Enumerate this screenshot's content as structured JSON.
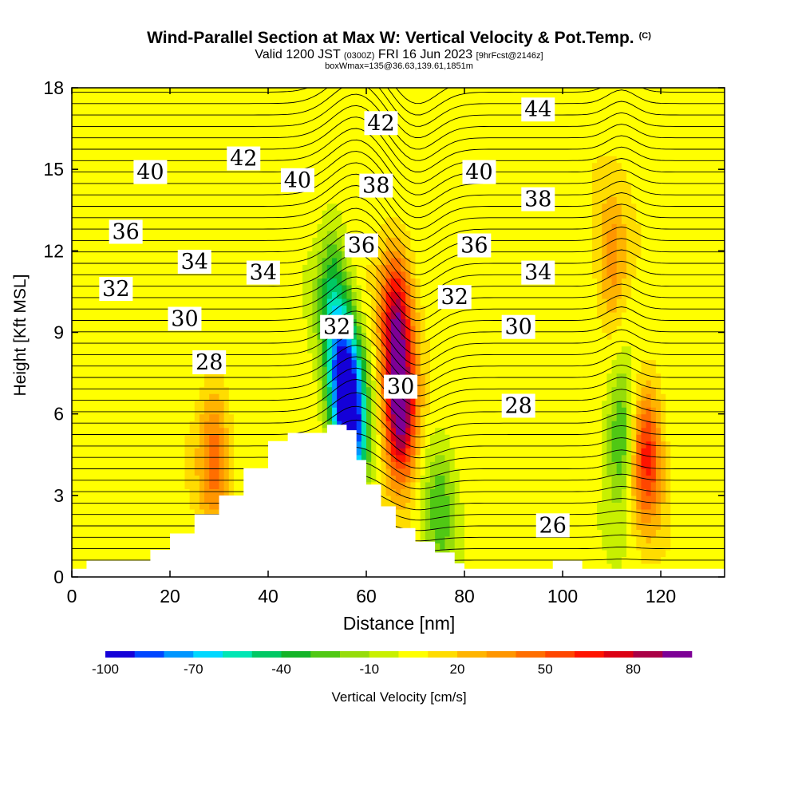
{
  "title": {
    "main": "Wind-Parallel Section at Max W: Vertical Velocity & Pot.Temp.",
    "copyright": "(C)",
    "valid_prefix": "Valid 1200 JST",
    "valid_utc": "(0300Z)",
    "valid_date": "FRI 16 Jun 2023",
    "forecast_tag": "[9hrFcst@2146z]",
    "box_info": "boxWmax=135@36.63,139.61,1851m"
  },
  "chart_data": {
    "type": "heatmap",
    "xlabel": "Distance [nm]",
    "ylabel": "Height [Kft MSL]",
    "xlim": [
      0,
      133
    ],
    "ylim": [
      0,
      18
    ],
    "xticks": [
      0,
      20,
      40,
      60,
      80,
      100,
      120
    ],
    "yticks": [
      0,
      3,
      6,
      9,
      12,
      15,
      18
    ],
    "colorbar": {
      "label": "Vertical Velocity [cm/s]",
      "levels": [
        -100,
        -90,
        -80,
        -70,
        -60,
        -50,
        -40,
        -30,
        -20,
        -10,
        0,
        10,
        20,
        30,
        40,
        50,
        60,
        70,
        80,
        90,
        100
      ],
      "tick_labels": [
        "-100",
        "-70",
        "-40",
        "-10",
        "20",
        "50",
        "80"
      ],
      "tick_values": [
        -100,
        -70,
        -40,
        -10,
        20,
        50,
        80
      ],
      "colors": [
        "#1400d8",
        "#0046ff",
        "#0096ff",
        "#00d8ff",
        "#00e6b4",
        "#00c864",
        "#14b428",
        "#50c814",
        "#96dc0a",
        "#c8f000",
        "#ffff00",
        "#ffdc00",
        "#ffb400",
        "#ff9600",
        "#ff6e00",
        "#ff4600",
        "#ff1400",
        "#dc0014",
        "#aa0046",
        "#7d0096"
      ]
    },
    "terrain_profile": {
      "x": [
        0,
        3,
        10,
        16,
        20,
        25,
        30,
        35,
        40,
        44,
        52,
        56,
        58,
        60,
        63,
        66,
        70,
        74,
        78,
        80,
        83,
        95,
        98,
        104,
        108,
        133
      ],
      "height": [
        0.3,
        0.6,
        0.6,
        1.0,
        1.6,
        2.3,
        3.0,
        4.0,
        5.0,
        5.3,
        5.6,
        5.4,
        4.3,
        3.4,
        2.6,
        1.8,
        1.3,
        0.9,
        0.5,
        0.3,
        0.3,
        0.3,
        0.6,
        0.3,
        0.3,
        0.3
      ]
    },
    "w_features": [
      {
        "x": 57,
        "z": 5.5,
        "w": -100,
        "desc": "downdraft"
      },
      {
        "x": 55,
        "z": 7.5,
        "w": -70
      },
      {
        "x": 53,
        "z": 10.5,
        "w": -40
      },
      {
        "x": 67,
        "z": 6.0,
        "w": 95,
        "desc": "updraft core"
      },
      {
        "x": 66,
        "z": 9.5,
        "w": 70
      },
      {
        "x": 117,
        "z": 4.5,
        "w": 60
      },
      {
        "x": 112,
        "z": 5.0,
        "w": -40
      },
      {
        "x": 29,
        "z": 4.5,
        "w": 40
      },
      {
        "x": 75,
        "z": 2.5,
        "w": -30
      },
      {
        "x": 110,
        "z": 11.5,
        "w": 30
      }
    ],
    "theta_contour_labels": [
      {
        "value": 44,
        "x": 95,
        "z": 17.2
      },
      {
        "value": 42,
        "x": 63,
        "z": 16.7
      },
      {
        "value": 42,
        "x": 35,
        "z": 15.4
      },
      {
        "value": 40,
        "x": 16,
        "z": 14.9
      },
      {
        "value": 40,
        "x": 46,
        "z": 14.6
      },
      {
        "value": 40,
        "x": 83,
        "z": 14.9
      },
      {
        "value": 38,
        "x": 62,
        "z": 14.4
      },
      {
        "value": 38,
        "x": 95,
        "z": 13.9
      },
      {
        "value": 36,
        "x": 11,
        "z": 12.7
      },
      {
        "value": 36,
        "x": 59,
        "z": 12.2
      },
      {
        "value": 36,
        "x": 82,
        "z": 12.2
      },
      {
        "value": 34,
        "x": 25,
        "z": 11.6
      },
      {
        "value": 34,
        "x": 39,
        "z": 11.2
      },
      {
        "value": 34,
        "x": 95,
        "z": 11.2
      },
      {
        "value": 32,
        "x": 9,
        "z": 10.6
      },
      {
        "value": 32,
        "x": 54,
        "z": 9.2
      },
      {
        "value": 32,
        "x": 78,
        "z": 10.3
      },
      {
        "value": 30,
        "x": 23,
        "z": 9.5
      },
      {
        "value": 30,
        "x": 67,
        "z": 7.0
      },
      {
        "value": 30,
        "x": 91,
        "z": 9.2
      },
      {
        "value": 28,
        "x": 28,
        "z": 7.9
      },
      {
        "value": 28,
        "x": 91,
        "z": 6.3
      },
      {
        "value": 26,
        "x": 98,
        "z": 1.9
      }
    ]
  }
}
